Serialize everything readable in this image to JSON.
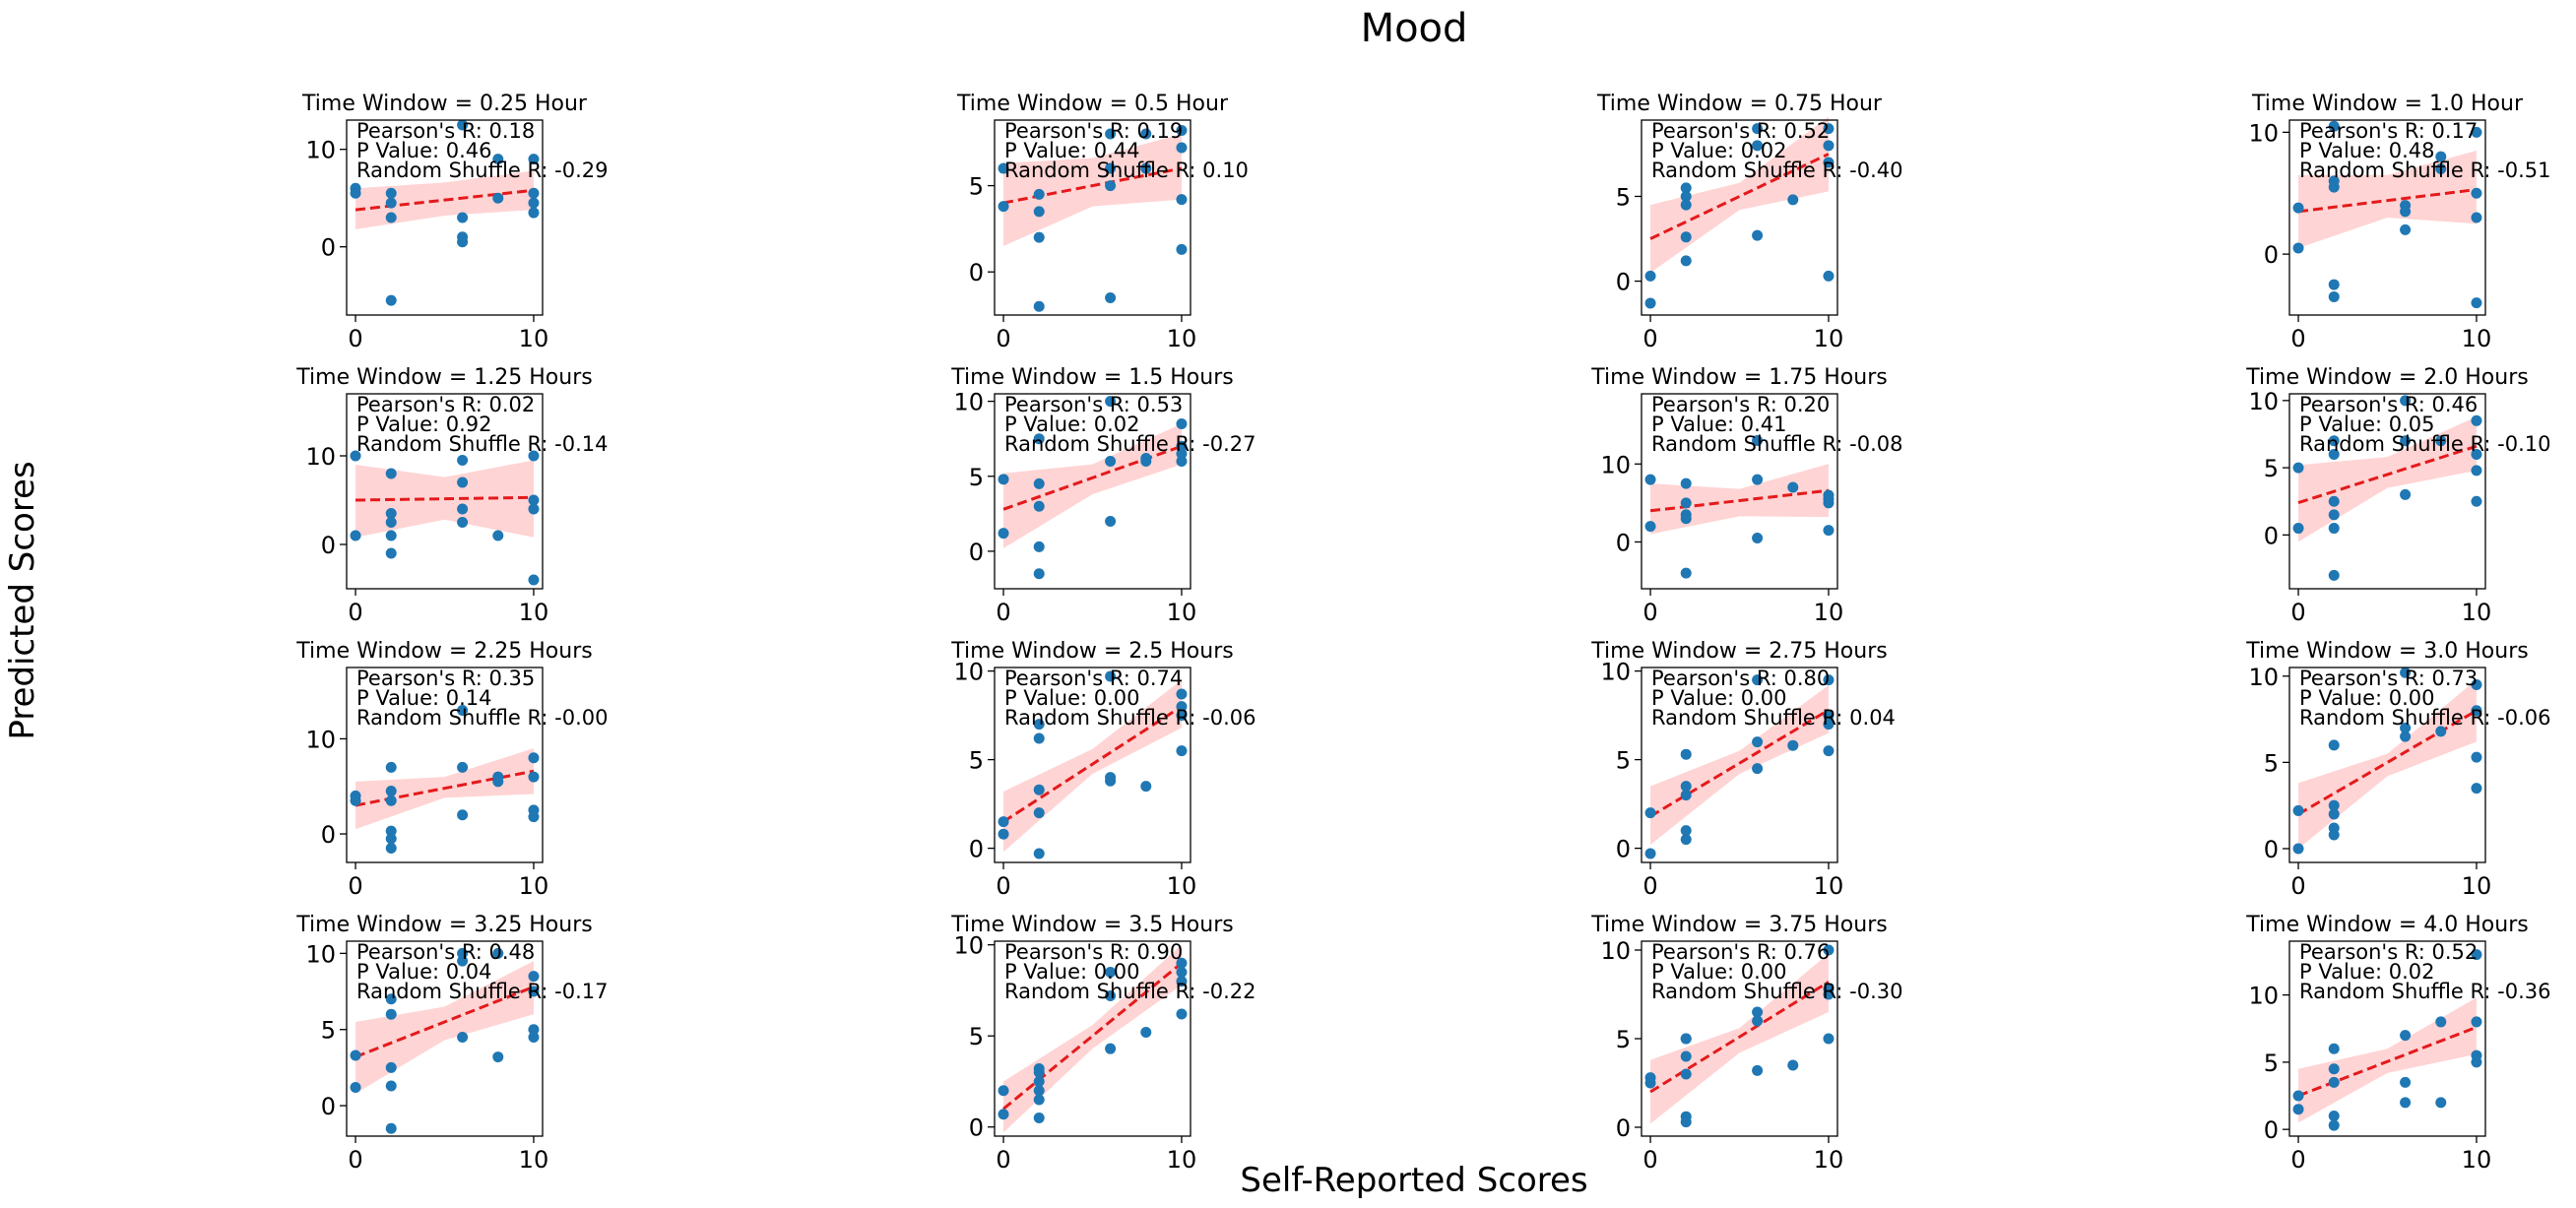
{
  "figure": {
    "title": "Mood",
    "xlabel": "Self-Reported Scores",
    "ylabel": "Predicted Scores"
  },
  "style": {
    "point_color": "#1f77b4",
    "fit_color": "#e41a1c",
    "band_color": "#ffcccc"
  },
  "stat_labels": {
    "r": "Pearson's R: ",
    "p": "P Value: ",
    "shuffle": "Random Shuffle R: "
  },
  "chart_data": [
    {
      "type": "scatter",
      "title": "Time Window = 0.25 Hour",
      "stats": {
        "r": "0.18",
        "p": "0.46",
        "shuffle": "-0.29"
      },
      "xlim": [
        -0.5,
        10.5
      ],
      "ylim": [
        -7,
        13
      ],
      "yticks": [
        0,
        10
      ],
      "xticks": [
        0,
        10
      ],
      "x": [
        0,
        0,
        2,
        2,
        2,
        2,
        6,
        6,
        6,
        6,
        8,
        8,
        10,
        10,
        10,
        10
      ],
      "y": [
        6,
        5.5,
        -5.5,
        3,
        4.5,
        5.5,
        0.5,
        1,
        3,
        12.5,
        5,
        9,
        3.5,
        4.5,
        5.5,
        9
      ],
      "fit": {
        "y0": 3.8,
        "y1": 5.8
      },
      "band": {
        "lo": [
          1.8,
          3.2,
          3.8
        ],
        "hi": [
          6.0,
          6.6,
          7.8
        ]
      }
    },
    {
      "type": "scatter",
      "title": "Time Window = 0.5 Hour",
      "stats": {
        "r": "0.19",
        "p": "0.44",
        "shuffle": "0.10"
      },
      "xlim": [
        -0.5,
        10.5
      ],
      "ylim": [
        -2.5,
        8.8
      ],
      "yticks": [
        0,
        5
      ],
      "xticks": [
        0,
        10
      ],
      "x": [
        0,
        0,
        2,
        2,
        2,
        2,
        6,
        6,
        6,
        6,
        8,
        8,
        10,
        10,
        10,
        10
      ],
      "y": [
        6,
        3.8,
        -2,
        2,
        3.5,
        4.5,
        -1.5,
        5,
        6,
        8,
        6,
        8,
        1.3,
        4.2,
        7.2,
        8.2
      ],
      "fit": {
        "y0": 4.0,
        "y1": 6.0
      },
      "band": {
        "lo": [
          1.5,
          3.8,
          4.2
        ],
        "hi": [
          6.3,
          6.6,
          8.0
        ]
      }
    },
    {
      "type": "scatter",
      "title": "Time Window = 0.75 Hour",
      "stats": {
        "r": "0.52",
        "p": "0.02",
        "shuffle": "-0.40"
      },
      "xlim": [
        -0.5,
        10.5
      ],
      "ylim": [
        -2,
        9.5
      ],
      "yticks": [
        0,
        5
      ],
      "xticks": [
        0,
        10
      ],
      "x": [
        0,
        0,
        2,
        2,
        2,
        2,
        2,
        6,
        6,
        6,
        8,
        10,
        10,
        10,
        10
      ],
      "y": [
        -1.3,
        0.3,
        1.2,
        2.6,
        4.5,
        5,
        5.5,
        2.7,
        8,
        9,
        4.8,
        0.3,
        7,
        8,
        9
      ],
      "fit": {
        "y0": 2.5,
        "y1": 7.5
      },
      "band": {
        "lo": [
          0.5,
          4.2,
          5.3
        ],
        "hi": [
          4.5,
          5.8,
          9.7
        ]
      }
    },
    {
      "type": "scatter",
      "title": "Time Window = 1.0 Hour",
      "stats": {
        "r": "0.17",
        "p": "0.48",
        "shuffle": "-0.51"
      },
      "xlim": [
        -0.5,
        10.5
      ],
      "ylim": [
        -5,
        11
      ],
      "yticks": [
        0,
        10
      ],
      "xticks": [
        0,
        10
      ],
      "x": [
        0,
        0,
        2,
        2,
        2,
        2,
        2,
        6,
        6,
        6,
        8,
        8,
        10,
        10,
        10,
        10
      ],
      "y": [
        0.5,
        3.8,
        -3.5,
        -2.5,
        5.5,
        6,
        10.5,
        2,
        3.5,
        4,
        7,
        8,
        -4,
        3,
        5,
        10
      ],
      "fit": {
        "y0": 3.5,
        "y1": 5.3
      },
      "band": {
        "lo": [
          0.5,
          3.0,
          2.5
        ],
        "hi": [
          6.5,
          6.5,
          8.5
        ]
      }
    },
    {
      "type": "scatter",
      "title": "Time Window = 1.25 Hours",
      "stats": {
        "r": "0.02",
        "p": "0.92",
        "shuffle": "-0.14"
      },
      "xlim": [
        -0.5,
        10.5
      ],
      "ylim": [
        -5,
        17
      ],
      "yticks": [
        0,
        10
      ],
      "xticks": [
        0,
        10
      ],
      "x": [
        0,
        0,
        2,
        2,
        2,
        2,
        2,
        6,
        6,
        6,
        6,
        8,
        10,
        10,
        10,
        10
      ],
      "y": [
        1,
        10,
        -1,
        1,
        2.5,
        3.5,
        8,
        2.5,
        4,
        7,
        9.5,
        1,
        -4,
        4,
        5,
        10
      ],
      "fit": {
        "y0": 5.0,
        "y1": 5.3
      },
      "band": {
        "lo": [
          0.8,
          2.8,
          0.8
        ],
        "hi": [
          9.0,
          7.6,
          9.5
        ]
      }
    },
    {
      "type": "scatter",
      "title": "Time Window = 1.5 Hours",
      "stats": {
        "r": "0.53",
        "p": "0.02",
        "shuffle": "-0.27"
      },
      "xlim": [
        -0.5,
        10.5
      ],
      "ylim": [
        -2.5,
        10.5
      ],
      "yticks": [
        0,
        5,
        10
      ],
      "xticks": [
        0,
        10
      ],
      "x": [
        0,
        0,
        2,
        2,
        2,
        2,
        2,
        6,
        6,
        6,
        8,
        8,
        10,
        10,
        10,
        10
      ],
      "y": [
        1.2,
        4.8,
        -1.5,
        0.3,
        3,
        4.5,
        7.5,
        2,
        6,
        10,
        6,
        6.2,
        6,
        6.5,
        7,
        8.5
      ],
      "fit": {
        "y0": 2.8,
        "y1": 7.0
      },
      "band": {
        "lo": [
          0.2,
          3.8,
          5.8
        ],
        "hi": [
          5.2,
          5.8,
          8.5
        ]
      }
    },
    {
      "type": "scatter",
      "title": "Time Window = 1.75 Hours",
      "stats": {
        "r": "0.20",
        "p": "0.41",
        "shuffle": "-0.08"
      },
      "xlim": [
        -0.5,
        10.5
      ],
      "ylim": [
        -6,
        19
      ],
      "yticks": [
        0,
        10
      ],
      "xticks": [
        0,
        10
      ],
      "x": [
        0,
        0,
        2,
        2,
        2,
        2,
        2,
        6,
        6,
        6,
        8,
        10,
        10,
        10,
        10
      ],
      "y": [
        2,
        8,
        -4,
        3,
        3.5,
        5,
        7.5,
        0.5,
        8,
        13,
        7,
        1.5,
        5,
        5.5,
        6
      ],
      "fit": {
        "y0": 4.0,
        "y1": 6.6
      },
      "band": {
        "lo": [
          1.0,
          3.3,
          3.2
        ],
        "hi": [
          7.5,
          6.8,
          10.0
        ]
      }
    },
    {
      "type": "scatter",
      "title": "Time Window = 2.0 Hours",
      "stats": {
        "r": "0.46",
        "p": "0.05",
        "shuffle": "-0.10"
      },
      "xlim": [
        -0.5,
        10.5
      ],
      "ylim": [
        -4,
        10.5
      ],
      "yticks": [
        0,
        5,
        10
      ],
      "xticks": [
        0,
        10
      ],
      "x": [
        0,
        0,
        2,
        2,
        2,
        2,
        2,
        2,
        6,
        6,
        6,
        8,
        10,
        10,
        10,
        10
      ],
      "y": [
        0.5,
        5,
        -3,
        0.5,
        1.5,
        2.5,
        6,
        7,
        3,
        7,
        10,
        7,
        2.5,
        4.8,
        6,
        8.5
      ],
      "fit": {
        "y0": 2.4,
        "y1": 6.6
      },
      "band": {
        "lo": [
          -0.5,
          3.5,
          4.8
        ],
        "hi": [
          5.2,
          5.8,
          8.8
        ]
      }
    },
    {
      "type": "scatter",
      "title": "Time Window = 2.25 Hours",
      "stats": {
        "r": "0.35",
        "p": "0.14",
        "shuffle": "-0.00"
      },
      "xlim": [
        -0.5,
        10.5
      ],
      "ylim": [
        -3,
        17.5
      ],
      "yticks": [
        0,
        10
      ],
      "xticks": [
        0,
        10
      ],
      "x": [
        0,
        0,
        2,
        2,
        2,
        2,
        2,
        2,
        6,
        6,
        6,
        8,
        8,
        10,
        10,
        10,
        10
      ],
      "y": [
        3.5,
        4,
        -1.5,
        -0.5,
        0.3,
        3.5,
        4.5,
        7,
        2,
        7,
        13,
        5.5,
        6,
        1.8,
        2.5,
        6,
        8
      ],
      "fit": {
        "y0": 3.0,
        "y1": 6.6
      },
      "band": {
        "lo": [
          0.5,
          3.8,
          4.2
        ],
        "hi": [
          5.5,
          6.0,
          9.0
        ]
      }
    },
    {
      "type": "scatter",
      "title": "Time Window = 2.5 Hours",
      "stats": {
        "r": "0.74",
        "p": "0.00",
        "shuffle": "-0.06"
      },
      "xlim": [
        -0.5,
        10.5
      ],
      "ylim": [
        -0.8,
        10.2
      ],
      "yticks": [
        0,
        5,
        10
      ],
      "xticks": [
        0,
        10
      ],
      "x": [
        0,
        0,
        2,
        2,
        2,
        2,
        2,
        6,
        6,
        6,
        8,
        10,
        10,
        10,
        10
      ],
      "y": [
        0.8,
        1.5,
        -0.3,
        2,
        3.3,
        6.2,
        7,
        3.8,
        4,
        9.7,
        3.5,
        5.5,
        7.5,
        8,
        8.7
      ],
      "fit": {
        "y0": 1.5,
        "y1": 8.0
      },
      "band": {
        "lo": [
          -0.2,
          4.2,
          6.8
        ],
        "hi": [
          3.2,
          5.6,
          9.5
        ]
      }
    },
    {
      "type": "scatter",
      "title": "Time Window = 2.75 Hours",
      "stats": {
        "r": "0.80",
        "p": "0.00",
        "shuffle": "0.04"
      },
      "xlim": [
        -0.5,
        10.5
      ],
      "ylim": [
        -0.8,
        10.2
      ],
      "yticks": [
        0,
        5,
        10
      ],
      "xticks": [
        0,
        10
      ],
      "x": [
        0,
        0,
        2,
        2,
        2,
        2,
        2,
        6,
        6,
        6,
        8,
        10,
        10,
        10,
        10
      ],
      "y": [
        -0.3,
        2,
        0.5,
        1,
        3,
        3.5,
        5.3,
        4.5,
        6,
        9.5,
        5.8,
        5.5,
        7,
        7.5,
        9.5
      ],
      "fit": {
        "y0": 1.8,
        "y1": 7.8
      },
      "band": {
        "lo": [
          0.2,
          4.2,
          6.5
        ],
        "hi": [
          3.5,
          5.5,
          9.2
        ]
      }
    },
    {
      "type": "scatter",
      "title": "Time Window = 3.0 Hours",
      "stats": {
        "r": "0.73",
        "p": "0.00",
        "shuffle": "-0.06"
      },
      "xlim": [
        -0.5,
        10.5
      ],
      "ylim": [
        -0.8,
        10.5
      ],
      "yticks": [
        0,
        5,
        10
      ],
      "xticks": [
        0,
        10
      ],
      "x": [
        0,
        0,
        2,
        2,
        2,
        2,
        2,
        6,
        6,
        6,
        8,
        10,
        10,
        10,
        10
      ],
      "y": [
        0,
        2.2,
        0.8,
        1.2,
        2,
        2.5,
        6,
        6.5,
        7,
        10.2,
        6.8,
        3.5,
        5.3,
        8,
        9.5
      ],
      "fit": {
        "y0": 2.0,
        "y1": 8.0
      },
      "band": {
        "lo": [
          0.0,
          4.2,
          6.2
        ],
        "hi": [
          3.8,
          5.5,
          9.8
        ]
      }
    },
    {
      "type": "scatter",
      "title": "Time Window = 3.25 Hours",
      "stats": {
        "r": "0.48",
        "p": "0.04",
        "shuffle": "-0.17"
      },
      "xlim": [
        -0.5,
        10.5
      ],
      "ylim": [
        -2,
        10.8
      ],
      "yticks": [
        0,
        5,
        10
      ],
      "xticks": [
        0,
        10
      ],
      "x": [
        0,
        0,
        2,
        2,
        2,
        2,
        2,
        6,
        6,
        6,
        8,
        8,
        10,
        10,
        10,
        10
      ],
      "y": [
        1.2,
        3.3,
        -1.5,
        1.3,
        2.5,
        6,
        7,
        4.5,
        9.5,
        10,
        3.2,
        10,
        4.5,
        5,
        7.5,
        8.5
      ],
      "fit": {
        "y0": 3.2,
        "y1": 7.8
      },
      "band": {
        "lo": [
          0.8,
          4.3,
          6.0
        ],
        "hi": [
          5.5,
          6.5,
          9.5
        ]
      }
    },
    {
      "type": "scatter",
      "title": "Time Window = 3.5 Hours",
      "stats": {
        "r": "0.90",
        "p": "0.00",
        "shuffle": "-0.22"
      },
      "xlim": [
        -0.5,
        10.5
      ],
      "ylim": [
        -0.5,
        10.2
      ],
      "yticks": [
        0,
        5,
        10
      ],
      "xticks": [
        0,
        10
      ],
      "x": [
        0,
        0,
        2,
        2,
        2,
        2,
        2,
        2,
        6,
        6,
        6,
        8,
        10,
        10,
        10,
        10
      ],
      "y": [
        0.7,
        2,
        0.5,
        1.5,
        2,
        2.5,
        3,
        3.2,
        4.3,
        7.2,
        8.5,
        5.2,
        6.2,
        8,
        8.5,
        9
      ],
      "fit": {
        "y0": 1.0,
        "y1": 9.0
      },
      "band": {
        "lo": [
          -0.3,
          4.3,
          7.8
        ],
        "hi": [
          2.5,
          5.6,
          10.0
        ]
      }
    },
    {
      "type": "scatter",
      "title": "Time Window = 3.75 Hours",
      "stats": {
        "r": "0.76",
        "p": "0.00",
        "shuffle": "-0.30"
      },
      "xlim": [
        -0.5,
        10.5
      ],
      "ylim": [
        -0.5,
        10.5
      ],
      "yticks": [
        0,
        5,
        10
      ],
      "xticks": [
        0,
        10
      ],
      "x": [
        0,
        0,
        2,
        2,
        2,
        2,
        2,
        2,
        6,
        6,
        6,
        8,
        10,
        10,
        10,
        10
      ],
      "y": [
        2.5,
        2.8,
        0.3,
        0.6,
        3,
        4,
        5,
        5,
        3.2,
        6,
        6.5,
        3.5,
        5,
        7.5,
        7.8,
        10
      ],
      "fit": {
        "y0": 2.0,
        "y1": 8.2
      },
      "band": {
        "lo": [
          0.2,
          4.2,
          6.5
        ],
        "hi": [
          3.8,
          5.6,
          9.8
        ]
      }
    },
    {
      "type": "scatter",
      "title": "Time Window = 4.0 Hours",
      "stats": {
        "r": "0.52",
        "p": "0.02",
        "shuffle": "-0.36"
      },
      "xlim": [
        -0.5,
        10.5
      ],
      "ylim": [
        -0.5,
        14
      ],
      "yticks": [
        0,
        5,
        10
      ],
      "xticks": [
        0,
        10
      ],
      "x": [
        0,
        0,
        2,
        2,
        2,
        2,
        2,
        6,
        6,
        6,
        8,
        8,
        10,
        10,
        10,
        10
      ],
      "y": [
        1.5,
        2.5,
        0.3,
        1,
        3.5,
        4.5,
        6,
        2,
        3.5,
        7,
        2,
        8,
        5,
        5.5,
        8,
        13
      ],
      "fit": {
        "y0": 2.5,
        "y1": 7.6
      },
      "band": {
        "lo": [
          0.5,
          4.2,
          5.6
        ],
        "hi": [
          4.5,
          6.0,
          9.8
        ]
      }
    }
  ]
}
